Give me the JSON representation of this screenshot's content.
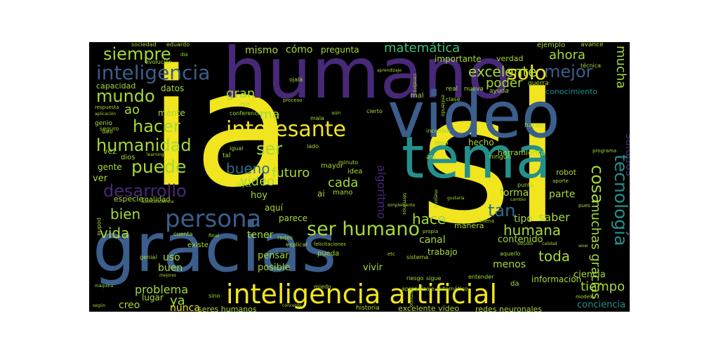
{
  "palette": {
    "background": "#000000",
    "yellow": "#f0e51e",
    "lime": "#a6d838",
    "green": "#3fbf78",
    "teal": "#23908c",
    "blue": "#3b5e8c",
    "steel": "#2e6e8e",
    "purple": "#44287a",
    "violet": "#482878"
  },
  "words": [
    {
      "text": "ia",
      "c": "yellow"
    },
    {
      "text": "si",
      "c": "yellow"
    },
    {
      "text": "humano",
      "c": "violet"
    },
    {
      "text": "video",
      "c": "blue"
    },
    {
      "text": "gracias",
      "c": "blue"
    },
    {
      "text": "tema",
      "c": "teal"
    },
    {
      "text": "inteligencia artificial",
      "c": "yellow"
    },
    {
      "text": "persona",
      "c": "blue"
    },
    {
      "text": "interesante",
      "c": "yellow"
    },
    {
      "text": "inteligencia",
      "c": "blue"
    },
    {
      "text": "solo",
      "c": "yellow"
    },
    {
      "text": "ser humano",
      "c": "lime"
    },
    {
      "text": "tecnología",
      "c": "teal"
    },
    {
      "text": "puede",
      "c": "lime"
    },
    {
      "text": "mundo",
      "c": "lime"
    },
    {
      "text": "hacer",
      "c": "lime"
    },
    {
      "text": "humanidad",
      "c": "lime"
    },
    {
      "text": "desarrollo",
      "c": "violet"
    },
    {
      "text": "ser",
      "c": "lime"
    },
    {
      "text": "siempre",
      "c": "lime"
    },
    {
      "text": "mejor",
      "c": "blue"
    },
    {
      "text": "excelente",
      "c": "lime"
    },
    {
      "text": "matemática",
      "c": "green"
    },
    {
      "text": "bueno",
      "c": "steel"
    },
    {
      "text": "vida",
      "c": "lime"
    },
    {
      "text": "bien",
      "c": "lime"
    },
    {
      "text": "hace",
      "c": "lime"
    },
    {
      "text": "toda",
      "c": "lime"
    },
    {
      "text": "tan",
      "c": "steel"
    },
    {
      "text": "humana",
      "c": "lime"
    },
    {
      "text": "cosa",
      "c": "lime"
    },
    {
      "text": "muchas gracias",
      "c": "lime"
    },
    {
      "text": "mucha",
      "c": "lime"
    },
    {
      "text": "tiempo",
      "c": "lime"
    },
    {
      "text": "saludos",
      "c": "purple"
    },
    {
      "text": "poder",
      "c": "lime"
    },
    {
      "text": "ahora",
      "c": "lime"
    },
    {
      "text": "gran",
      "c": "lime"
    },
    {
      "text": "ma",
      "c": "lime"
    },
    {
      "text": "ao",
      "c": "lime"
    },
    {
      "text": "futuro",
      "c": "lime"
    },
    {
      "text": "cada",
      "c": "lime"
    },
    {
      "text": "vídeo",
      "c": "lime"
    },
    {
      "text": "algoritmo",
      "c": "purple"
    },
    {
      "text": "problema",
      "c": "lime"
    },
    {
      "text": "ya",
      "c": "lime"
    },
    {
      "text": "saber",
      "c": "lime"
    },
    {
      "text": "mismo",
      "c": "lime"
    },
    {
      "text": "cómo",
      "c": "lime"
    },
    {
      "text": "pregunta",
      "c": "lime"
    },
    {
      "text": "importante",
      "c": "lime"
    },
    {
      "text": "verdad",
      "c": "lime"
    },
    {
      "text": "ejemplo",
      "c": "lime"
    },
    {
      "text": "capacidad",
      "c": "lime"
    },
    {
      "text": "datos",
      "c": "lime"
    },
    {
      "text": "conocimiento",
      "c": "teal"
    },
    {
      "text": "mente",
      "c": "lime"
    },
    {
      "text": "hecho",
      "c": "lime"
    },
    {
      "text": "herramienta",
      "c": "lime"
    },
    {
      "text": "parte",
      "c": "lime"
    },
    {
      "text": "forma",
      "c": "lime"
    },
    {
      "text": "tipo",
      "c": "lime"
    },
    {
      "text": "contenido",
      "c": "lime"
    },
    {
      "text": "canal",
      "c": "lime"
    },
    {
      "text": "trabajo",
      "c": "lime"
    },
    {
      "text": "menos",
      "c": "lime"
    },
    {
      "text": "uso",
      "c": "lime"
    },
    {
      "text": "buen",
      "c": "lime"
    },
    {
      "text": "posible",
      "c": "lime"
    },
    {
      "text": "vivir",
      "c": "lime"
    },
    {
      "text": "pensar",
      "c": "lime"
    },
    {
      "text": "creo",
      "c": "lime"
    },
    {
      "text": "lugar",
      "c": "lime"
    },
    {
      "text": "nunca",
      "c": "yellow"
    },
    {
      "text": "seres humanos",
      "c": "lime"
    },
    {
      "text": "ciencia",
      "c": "lime"
    },
    {
      "text": "conciencia",
      "c": "teal"
    },
    {
      "text": "información",
      "c": "lime"
    },
    {
      "text": "redes neuronales",
      "c": "lime"
    },
    {
      "text": "excelente video",
      "c": "lime"
    },
    {
      "text": "historia",
      "c": "lime"
    },
    {
      "text": "aprendizaje automático",
      "c": "lime"
    },
    {
      "text": "realidad",
      "c": "lime"
    },
    {
      "text": "gente",
      "c": "lime"
    },
    {
      "text": "ver",
      "c": "lime"
    },
    {
      "text": "hoy",
      "c": "lime"
    },
    {
      "text": "aquí",
      "c": "lime"
    },
    {
      "text": "parece",
      "c": "lime"
    },
    {
      "text": "tener",
      "c": "lime"
    },
    {
      "text": "especie",
      "c": "lime"
    },
    {
      "text": "manera",
      "c": "lime"
    },
    {
      "text": "robot",
      "c": "lime"
    },
    {
      "text": "mayor",
      "c": "lime"
    },
    {
      "text": "idea",
      "c": "lime"
    },
    {
      "text": "vez",
      "c": "lime"
    },
    {
      "text": "dios",
      "c": "lime"
    },
    {
      "text": "sociedad",
      "c": "lime"
    },
    {
      "text": "eduardo",
      "c": "lime"
    },
    {
      "text": "evolución",
      "c": "lime"
    },
    {
      "text": "avance",
      "c": "lime"
    },
    {
      "text": "técnica",
      "c": "lime"
    },
    {
      "text": "guerra",
      "c": "lime"
    },
    {
      "text": "nueva",
      "c": "lime"
    },
    {
      "text": "real",
      "c": "lime"
    },
    {
      "text": "ayuda",
      "c": "lime"
    },
    {
      "text": "mal",
      "c": "lime"
    },
    {
      "text": "clase",
      "c": "lime"
    },
    {
      "text": "entiendo",
      "c": "lime"
    },
    {
      "text": "ojalá",
      "c": "lime"
    },
    {
      "text": "conferencia",
      "c": "lime"
    },
    {
      "text": "nio",
      "c": "lime"
    },
    {
      "text": "genio",
      "c": "lime"
    },
    {
      "text": "seguro",
      "c": "lime"
    },
    {
      "text": "hacen",
      "c": "lime"
    },
    {
      "text": "ningún",
      "c": "lime"
    },
    {
      "text": "increíble",
      "c": "lime"
    },
    {
      "text": "bbva",
      "c": "lime"
    },
    {
      "text": "así",
      "c": "lime"
    },
    {
      "text": "minuto",
      "c": "lime"
    },
    {
      "text": "ai",
      "c": "lime"
    },
    {
      "text": "mano",
      "c": "lime"
    },
    {
      "text": "leyes",
      "c": "lime"
    },
    {
      "text": "mala",
      "c": "lime"
    },
    {
      "text": "cierto",
      "c": "lime"
    },
    {
      "text": "lado",
      "c": "lime"
    },
    {
      "text": "igual",
      "c": "lime"
    },
    {
      "text": "tal",
      "c": "lime"
    },
    {
      "text": "punto",
      "c": "lime"
    },
    {
      "text": "aporte",
      "c": "lime"
    },
    {
      "text": "cuenta",
      "c": "lime"
    },
    {
      "text": "redes",
      "c": "lime"
    },
    {
      "text": "explicar",
      "c": "lime"
    },
    {
      "text": "existe",
      "c": "lime"
    },
    {
      "text": "felicitaciones",
      "c": "lime"
    },
    {
      "text": "propia",
      "c": "lime"
    },
    {
      "text": "buena",
      "c": "lime"
    },
    {
      "text": "pueda",
      "c": "lime"
    },
    {
      "text": "etc",
      "c": "lime"
    },
    {
      "text": "sistema",
      "c": "lime"
    },
    {
      "text": "riesgo",
      "c": "lime"
    },
    {
      "text": "sigue",
      "c": "lime"
    },
    {
      "text": "entender",
      "c": "lime"
    },
    {
      "text": "aquello",
      "c": "lime"
    },
    {
      "text": "miedo",
      "c": "lime"
    },
    {
      "text": "sino",
      "c": "lime"
    },
    {
      "text": "genial",
      "c": "lime"
    },
    {
      "text": "modelo",
      "c": "lime"
    },
    {
      "text": "da",
      "c": "lime"
    },
    {
      "text": "término",
      "c": "lime"
    },
    {
      "text": "términos",
      "c": "lime"
    },
    {
      "text": "cerebro",
      "c": "lime"
    },
    {
      "text": "cambio",
      "c": "lime"
    },
    {
      "text": "máquina",
      "c": "lime"
    },
    {
      "text": "dia",
      "c": "lime"
    },
    {
      "text": "respuesta",
      "c": "lime"
    },
    {
      "text": "aplicación",
      "c": "lime"
    },
    {
      "text": "autoconciencia",
      "c": "lime"
    },
    {
      "text": "programa",
      "c": "lime"
    },
    {
      "text": "simplemente",
      "c": "lime"
    },
    {
      "text": "gustaría",
      "c": "lime"
    },
    {
      "text": "podría",
      "c": "lime"
    },
    {
      "text": "calidad",
      "c": "lime"
    },
    {
      "text": "estudio",
      "c": "lime"
    },
    {
      "text": "mejores",
      "c": "lime"
    },
    {
      "text": "según",
      "c": "lime"
    },
    {
      "text": "concepto",
      "c": "lime"
    },
    {
      "text": "wow",
      "c": "lime"
    },
    {
      "text": "pues",
      "c": "lime"
    },
    {
      "text": "mejorar",
      "c": "lime"
    },
    {
      "text": "aún",
      "c": "lime"
    },
    {
      "text": "final",
      "c": "lime"
    },
    {
      "text": "dato",
      "c": "lime"
    },
    {
      "text": "proceso",
      "c": "lime"
    },
    {
      "text": "learning",
      "c": "lime"
    },
    {
      "text": "aprendizaje",
      "c": "lime"
    }
  ]
}
